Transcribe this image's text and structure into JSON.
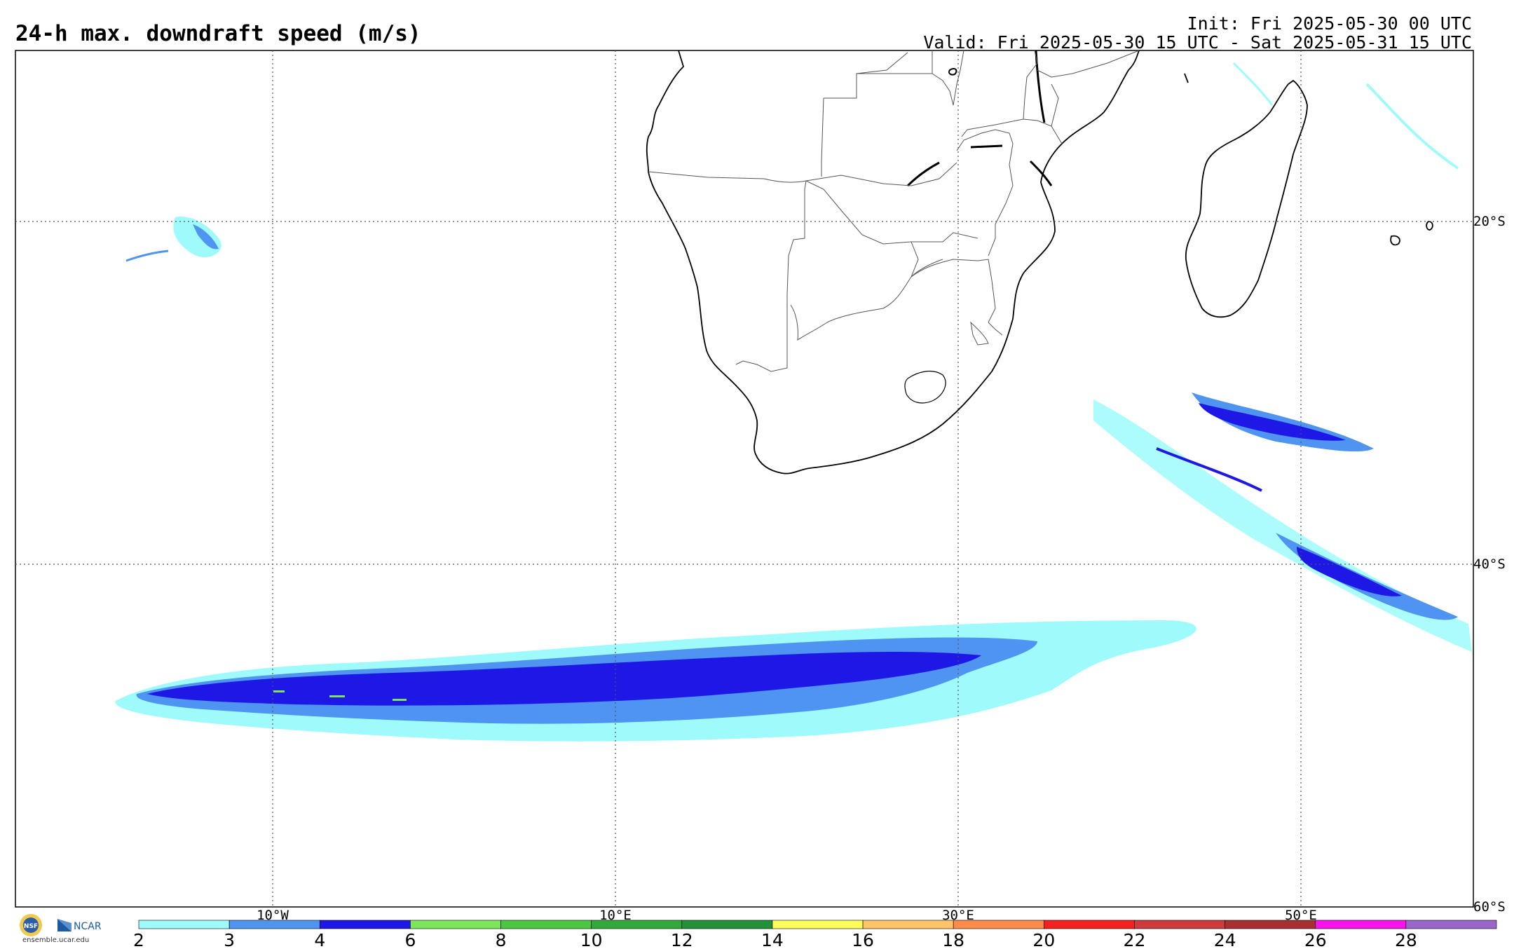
{
  "title": "24-h max. downdraft speed (m/s)",
  "init": "Init: Fri 2025-05-30 00 UTC",
  "valid": "Valid: Fri 2025-05-30 15 UTC - Sat 2025-05-31 15 UTC",
  "grid": {
    "lon_labels": [
      "10°W",
      "10°E",
      "30°E",
      "50°E"
    ],
    "lat_labels": [
      "20°S",
      "40°S",
      "60°S"
    ]
  },
  "colorbar": {
    "ticks": [
      "2",
      "3",
      "4",
      "6",
      "8",
      "10",
      "12",
      "14",
      "16",
      "18",
      "20",
      "22",
      "24",
      "26",
      "28"
    ],
    "colors": [
      "#9ffbfb",
      "#4f94f0",
      "#1d18e6",
      "#7de55c",
      "#4cc743",
      "#32a83a",
      "#22913a",
      "#fefd5b",
      "#fdc46a",
      "#fd8c4c",
      "#f52020",
      "#cc3c3c",
      "#a72f2f",
      "#f613ec",
      "#9b66cc"
    ]
  },
  "logo": {
    "nsf": "NSF",
    "ncar": "NCAR",
    "url": "ensemble.ucar.edu"
  }
}
